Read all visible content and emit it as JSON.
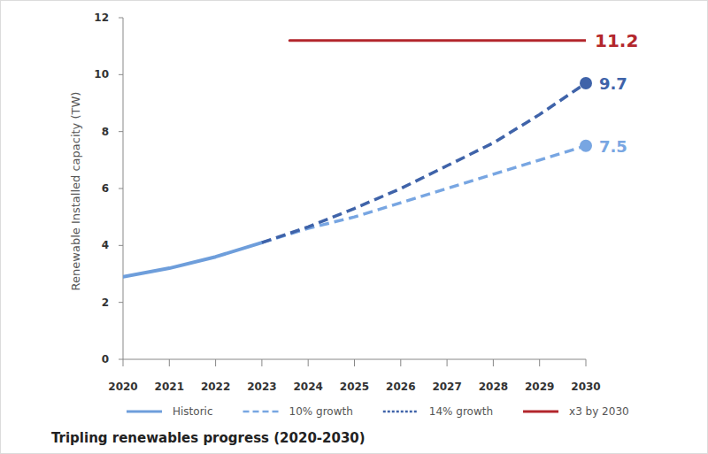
{
  "chart_data": {
    "type": "line",
    "title": "Tripling renewables progress (2020-2030)",
    "y_label": "Renewable Installed capacity (TW)",
    "x": [
      2020,
      2021,
      2022,
      2023,
      2024,
      2025,
      2026,
      2027,
      2028,
      2029,
      2030
    ],
    "xlim": [
      2020,
      2030
    ],
    "xticks": [
      2020,
      2021,
      2022,
      2023,
      2024,
      2025,
      2026,
      2027,
      2028,
      2029,
      2030
    ],
    "ylim": [
      0,
      12
    ],
    "yticks": [
      0,
      2,
      4,
      6,
      8,
      10,
      12
    ],
    "grid": false,
    "legend": "bottom",
    "data_labels": true,
    "series": [
      {
        "name": "Historic",
        "color": "#6e9edb",
        "line_style": "solid",
        "values": [
          2.9,
          3.2,
          3.6,
          4.1,
          null,
          null,
          null,
          null,
          null,
          null,
          null
        ]
      },
      {
        "name": "10% growth",
        "color": "#78a6e2",
        "line_style": "dashed",
        "values": [
          null,
          null,
          null,
          4.1,
          4.6,
          5.0,
          5.5,
          6.0,
          6.5,
          7.0,
          7.5
        ],
        "value_labels": [
          null,
          null,
          null,
          null,
          null,
          null,
          null,
          null,
          null,
          null,
          "7.5"
        ]
      },
      {
        "name": "14% growth",
        "color": "#3f63a9",
        "line_style": "dashed",
        "values": [
          null,
          null,
          null,
          4.1,
          4.65,
          5.3,
          6.0,
          6.8,
          7.6,
          8.6,
          9.7
        ],
        "value_labels": [
          null,
          null,
          null,
          null,
          null,
          null,
          null,
          null,
          null,
          null,
          "9.7"
        ]
      },
      {
        "name": "x3 by 2030",
        "color": "#b3262c",
        "line_style": "solid",
        "x": [
          2023.6,
          2030
        ],
        "values": [
          11.2,
          11.2
        ],
        "value_labels": [
          null,
          "11.2"
        ]
      }
    ]
  }
}
